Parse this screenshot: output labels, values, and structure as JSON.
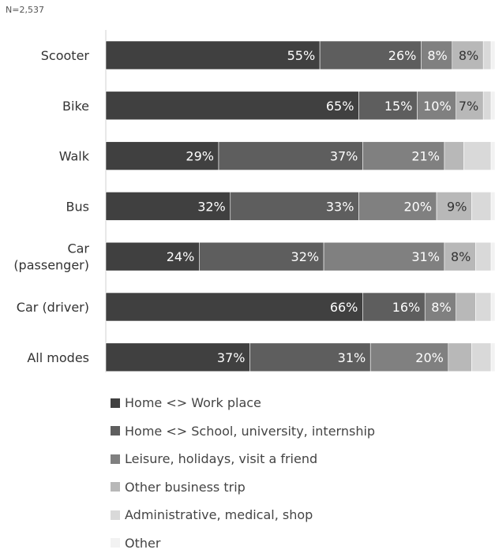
{
  "sample_note": "N=2,537",
  "chart_data": {
    "type": "bar",
    "orientation": "horizontal",
    "stacked": true,
    "categories": [
      "Scooter",
      "Bike",
      "Walk",
      "Bus",
      "Car (passenger)",
      "Car (driver)",
      "All modes"
    ],
    "category_lines": [
      [
        "Scooter"
      ],
      [
        "Bike"
      ],
      [
        "Walk"
      ],
      [
        "Bus"
      ],
      [
        "Car",
        "(passenger)"
      ],
      [
        "Car (driver)"
      ],
      [
        "All modes"
      ]
    ],
    "xlim": [
      0,
      100
    ],
    "grid": false,
    "legend_position": "bottom",
    "series": [
      {
        "name": "Home  <> Work place",
        "color": "#404040",
        "values": [
          55,
          65,
          29,
          32,
          24,
          66,
          37
        ]
      },
      {
        "name": "Home  <> School, university, internship",
        "color": "#5e5e5e",
        "values": [
          26,
          15,
          37,
          33,
          32,
          16,
          31
        ]
      },
      {
        "name": "Leisure, holidays, visit a friend",
        "color": "#808080",
        "values": [
          8,
          10,
          21,
          20,
          31,
          8,
          20
        ]
      },
      {
        "name": "Other business trip",
        "color": "#b8b8b8",
        "values": [
          8,
          7,
          5,
          9,
          8,
          5,
          6
        ]
      },
      {
        "name": "Administrative, medical, shop",
        "color": "#d9d9d9",
        "values": [
          2,
          2,
          7,
          5,
          4,
          4,
          5
        ]
      },
      {
        "name": "Other",
        "color": "#f2f2f2",
        "values": [
          1,
          1,
          1,
          1,
          1,
          1,
          1
        ]
      }
    ]
  }
}
